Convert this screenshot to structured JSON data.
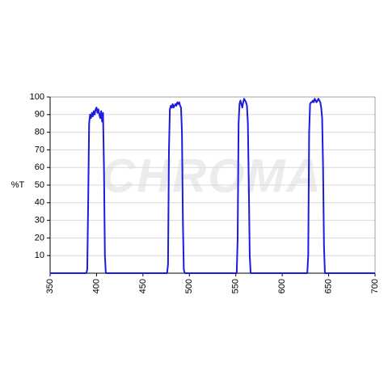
{
  "chart_data": {
    "type": "line",
    "watermark": "CHROMA",
    "y_label": "%T",
    "xlim": [
      350,
      700
    ],
    "xticks": [
      350,
      400,
      450,
      500,
      550,
      600,
      650,
      700
    ],
    "ylim": [
      0,
      100
    ],
    "yticks": [
      10,
      20,
      30,
      40,
      50,
      60,
      70,
      80,
      90,
      100
    ],
    "grid": true,
    "series": [
      {
        "color": "#1c1ce0",
        "x": [
          350,
          389,
          390,
          391,
          392,
          393,
          394,
          395,
          396,
          397,
          398,
          399,
          400,
          401,
          402,
          403,
          404,
          405,
          406,
          407,
          408,
          409,
          410,
          476,
          477,
          478,
          479,
          480,
          481,
          482,
          483,
          484,
          485,
          486,
          487,
          488,
          489,
          490,
          491,
          492,
          493,
          494,
          495,
          551,
          552,
          553,
          554,
          555,
          556,
          557,
          558,
          559,
          560,
          561,
          562,
          563,
          564,
          565,
          566,
          627,
          628,
          629,
          630,
          631,
          632,
          633,
          634,
          635,
          636,
          637,
          638,
          639,
          640,
          641,
          642,
          643,
          644,
          645,
          646,
          700
        ],
        "values": [
          0,
          0,
          2,
          40,
          85,
          90,
          88,
          91,
          89,
          92,
          90,
          93,
          94,
          91,
          93,
          90,
          88,
          92,
          86,
          91,
          60,
          10,
          0,
          0,
          5,
          70,
          93,
          95,
          94,
          96,
          94,
          95,
          96,
          95,
          97,
          96,
          97,
          95,
          94,
          80,
          30,
          2,
          0,
          0,
          20,
          85,
          96,
          98,
          96,
          94,
          97,
          99,
          98,
          97,
          95,
          85,
          50,
          10,
          0,
          0,
          10,
          80,
          96,
          97,
          97,
          98,
          97,
          99,
          98,
          97,
          98,
          99,
          98,
          97,
          94,
          88,
          60,
          15,
          0,
          0
        ]
      }
    ]
  }
}
